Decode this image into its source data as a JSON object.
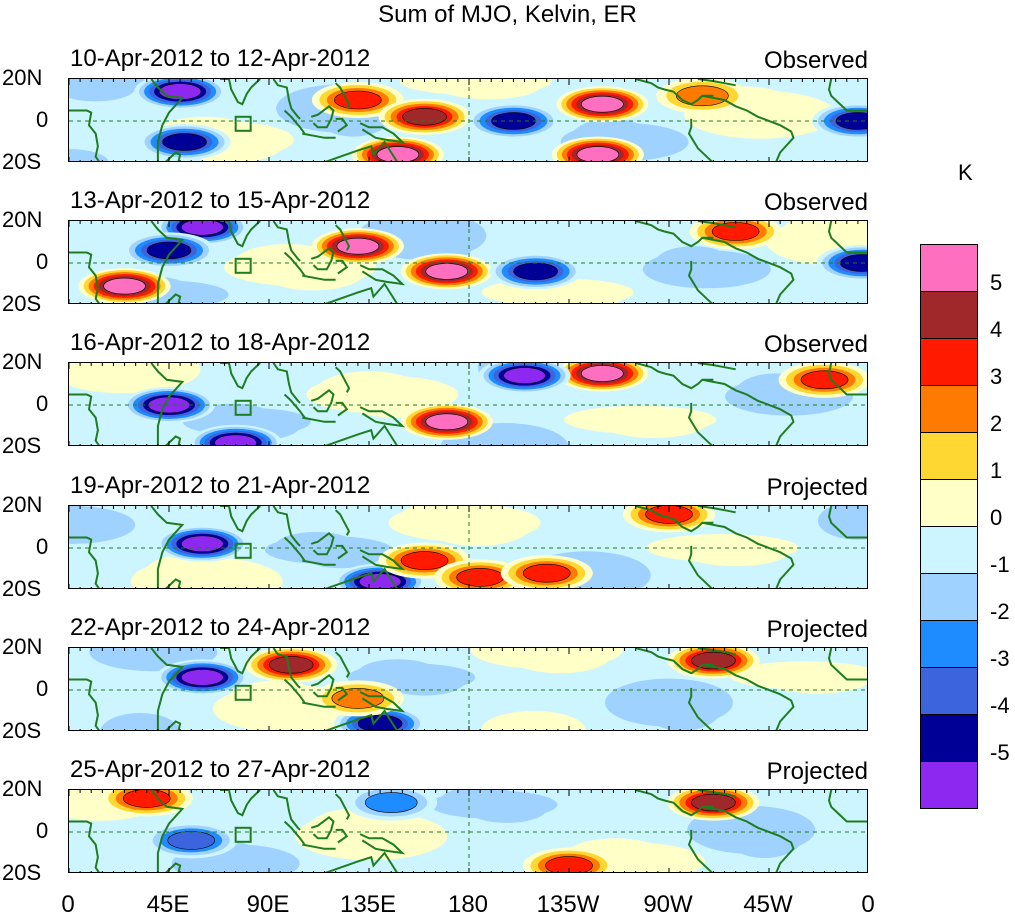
{
  "title": "Sum of MJO, Kelvin, ER",
  "units": "K",
  "lat_labels": [
    "20N",
    "0",
    "20S"
  ],
  "lon_labels": [
    "0",
    "45E",
    "90E",
    "135E",
    "180",
    "135W",
    "90W",
    "45W",
    "0"
  ],
  "panels": [
    {
      "dates": "10-Apr-2012 to 12-Apr-2012",
      "status": "Observed"
    },
    {
      "dates": "13-Apr-2012 to 15-Apr-2012",
      "status": "Observed"
    },
    {
      "dates": "16-Apr-2012 to 18-Apr-2012",
      "status": "Observed"
    },
    {
      "dates": "19-Apr-2012 to 21-Apr-2012",
      "status": "Projected"
    },
    {
      "dates": "22-Apr-2012 to 24-Apr-2012",
      "status": "Projected"
    },
    {
      "dates": "25-Apr-2012 to 27-Apr-2012",
      "status": "Projected"
    }
  ],
  "colorbar": {
    "labels": [
      "5",
      "4",
      "3",
      "2",
      "1",
      "0",
      "-1",
      "-2",
      "-3",
      "-4",
      "-5"
    ],
    "colors": [
      "#ff6fc0",
      "#a0282a",
      "#ff1a00",
      "#ff7a00",
      "#ffd732",
      "#ffffc8",
      "#cdf5ff",
      "#a0d2ff",
      "#1e8cff",
      "#3c64dc",
      "#000096",
      "#8c28f0"
    ]
  },
  "chart_data": {
    "type": "heatmap",
    "title": "Sum of MJO, Kelvin, ER",
    "units": "K",
    "levels": [
      -5,
      -4,
      -3,
      -2,
      -1,
      0,
      1,
      2,
      3,
      4,
      5
    ],
    "lat_range": [
      -20,
      20
    ],
    "lon_range": [
      0,
      360
    ],
    "panels": [
      {
        "dates": "10-Apr-2012 to 12-Apr-2012",
        "status": "Observed",
        "features": [
          {
            "lon": 50,
            "lat": 14,
            "value": -5
          },
          {
            "lon": 130,
            "lat": 10,
            "value": 3
          },
          {
            "lon": 160,
            "lat": 2,
            "value": 4
          },
          {
            "lon": 148,
            "lat": -16,
            "value": 5
          },
          {
            "lon": 52,
            "lat": -10,
            "value": -4
          },
          {
            "lon": 200,
            "lat": 0,
            "value": -4
          },
          {
            "lon": 238,
            "lat": -16,
            "value": 5
          },
          {
            "lon": 240,
            "lat": 8,
            "value": 5
          },
          {
            "lon": 285,
            "lat": 12,
            "value": 2
          },
          {
            "lon": 355,
            "lat": 0,
            "value": -4
          }
        ]
      },
      {
        "dates": "13-Apr-2012 to 15-Apr-2012",
        "status": "Observed",
        "features": [
          {
            "lon": 60,
            "lat": 17,
            "value": -5
          },
          {
            "lon": 130,
            "lat": 8,
            "value": 5
          },
          {
            "lon": 25,
            "lat": -11,
            "value": 5
          },
          {
            "lon": 170,
            "lat": -4,
            "value": 5
          },
          {
            "lon": 45,
            "lat": 6,
            "value": -4
          },
          {
            "lon": 210,
            "lat": -4,
            "value": -4
          },
          {
            "lon": 300,
            "lat": 15,
            "value": 3
          },
          {
            "lon": 357,
            "lat": 0,
            "value": -4
          }
        ]
      },
      {
        "dates": "16-Apr-2012 to 18-Apr-2012",
        "status": "Observed",
        "features": [
          {
            "lon": 170,
            "lat": -8,
            "value": 5
          },
          {
            "lon": 240,
            "lat": 15,
            "value": 5
          },
          {
            "lon": 205,
            "lat": 14,
            "value": -5
          },
          {
            "lon": 45,
            "lat": 0,
            "value": -5
          },
          {
            "lon": 75,
            "lat": -18,
            "value": -5
          },
          {
            "lon": 340,
            "lat": 12,
            "value": 3
          }
        ]
      },
      {
        "dates": "19-Apr-2012 to 21-Apr-2012",
        "status": "Projected",
        "features": [
          {
            "lon": 60,
            "lat": 2,
            "value": -5
          },
          {
            "lon": 140,
            "lat": -16,
            "value": -5
          },
          {
            "lon": 160,
            "lat": -6,
            "value": 3
          },
          {
            "lon": 270,
            "lat": 16,
            "value": 3
          },
          {
            "lon": 185,
            "lat": -14,
            "value": 3
          },
          {
            "lon": 215,
            "lat": -12,
            "value": 3
          }
        ]
      },
      {
        "dates": "22-Apr-2012 to 24-Apr-2012",
        "status": "Projected",
        "features": [
          {
            "lon": 60,
            "lat": 6,
            "value": -5
          },
          {
            "lon": 100,
            "lat": 12,
            "value": 4
          },
          {
            "lon": 290,
            "lat": 14,
            "value": 4
          },
          {
            "lon": 140,
            "lat": -16,
            "value": -4
          },
          {
            "lon": 130,
            "lat": -4,
            "value": 2
          }
        ]
      },
      {
        "dates": "25-Apr-2012 to 27-Apr-2012",
        "status": "Projected",
        "features": [
          {
            "lon": 290,
            "lat": 14,
            "value": 4
          },
          {
            "lon": 35,
            "lat": 16,
            "value": 3
          },
          {
            "lon": 225,
            "lat": -16,
            "value": 3
          },
          {
            "lon": 55,
            "lat": -4,
            "value": -3
          },
          {
            "lon": 145,
            "lat": 14,
            "value": -2
          }
        ]
      }
    ]
  }
}
